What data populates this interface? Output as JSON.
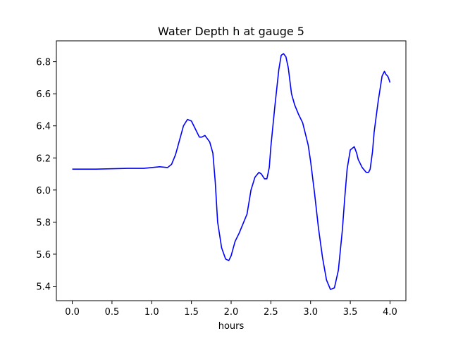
{
  "chart_data": {
    "type": "line",
    "title": "Water Depth h at gauge 5",
    "xlabel": "hours",
    "ylabel": "",
    "xlim": [
      -0.2,
      4.2
    ],
    "ylim": [
      5.31,
      6.93
    ],
    "xticks": [
      0.0,
      0.5,
      1.0,
      1.5,
      2.0,
      2.5,
      3.0,
      3.5,
      4.0
    ],
    "xtick_labels": [
      "0.0",
      "0.5",
      "1.0",
      "1.5",
      "2.0",
      "2.5",
      "3.0",
      "3.5",
      "4.0"
    ],
    "yticks": [
      5.4,
      5.6,
      5.8,
      6.0,
      6.2,
      6.4,
      6.6,
      6.8
    ],
    "ytick_labels": [
      "5.4",
      "5.6",
      "5.8",
      "6.0",
      "6.2",
      "6.4",
      "6.6",
      "6.8"
    ],
    "grid": false,
    "series": [
      {
        "color": "#0000ff",
        "x": [
          0.0,
          0.3,
          0.7,
          0.9,
          1.0,
          1.1,
          1.2,
          1.25,
          1.3,
          1.35,
          1.4,
          1.45,
          1.5,
          1.55,
          1.6,
          1.63,
          1.67,
          1.7,
          1.73,
          1.77,
          1.8,
          1.83,
          1.88,
          1.93,
          1.97,
          2.0,
          2.05,
          2.1,
          2.15,
          2.2,
          2.25,
          2.3,
          2.35,
          2.38,
          2.42,
          2.45,
          2.48,
          2.5,
          2.55,
          2.6,
          2.63,
          2.66,
          2.69,
          2.72,
          2.76,
          2.8,
          2.85,
          2.9,
          2.93,
          2.97,
          3.0,
          3.05,
          3.1,
          3.15,
          3.2,
          3.25,
          3.3,
          3.35,
          3.4,
          3.43,
          3.46,
          3.5,
          3.55,
          3.58,
          3.6,
          3.65,
          3.7,
          3.73,
          3.75,
          3.78,
          3.8,
          3.85,
          3.9,
          3.93,
          3.95,
          3.97,
          3.98,
          4.0
        ],
        "y": [
          6.13,
          6.13,
          6.135,
          6.135,
          6.14,
          6.145,
          6.14,
          6.16,
          6.22,
          6.31,
          6.4,
          6.44,
          6.43,
          6.38,
          6.33,
          6.33,
          6.34,
          6.32,
          6.3,
          6.23,
          6.05,
          5.8,
          5.64,
          5.57,
          5.56,
          5.59,
          5.68,
          5.73,
          5.79,
          5.85,
          6.0,
          6.08,
          6.11,
          6.1,
          6.07,
          6.07,
          6.14,
          6.27,
          6.52,
          6.75,
          6.84,
          6.85,
          6.83,
          6.76,
          6.6,
          6.53,
          6.47,
          6.42,
          6.36,
          6.28,
          6.18,
          5.98,
          5.76,
          5.58,
          5.44,
          5.38,
          5.39,
          5.5,
          5.75,
          5.95,
          6.13,
          6.25,
          6.27,
          6.23,
          6.19,
          6.14,
          6.11,
          6.11,
          6.13,
          6.24,
          6.36,
          6.55,
          6.71,
          6.74,
          6.72,
          6.71,
          6.7,
          6.67
        ]
      }
    ]
  }
}
